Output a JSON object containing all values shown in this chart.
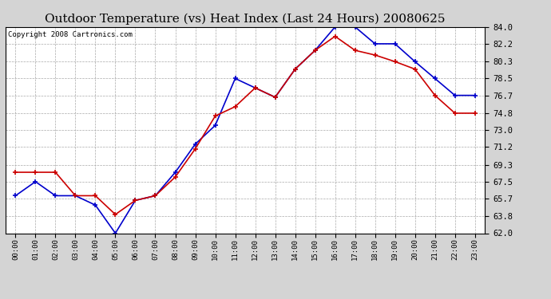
{
  "title": "Outdoor Temperature (vs) Heat Index (Last 24 Hours) 20080625",
  "copyright": "Copyright 2008 Cartronics.com",
  "hours": [
    "00:00",
    "01:00",
    "02:00",
    "03:00",
    "04:00",
    "05:00",
    "06:00",
    "07:00",
    "08:00",
    "09:00",
    "10:00",
    "11:00",
    "12:00",
    "13:00",
    "14:00",
    "15:00",
    "16:00",
    "17:00",
    "18:00",
    "19:00",
    "20:00",
    "21:00",
    "22:00",
    "23:00"
  ],
  "temp": [
    66.0,
    67.5,
    66.0,
    66.0,
    65.0,
    62.0,
    65.5,
    66.0,
    68.5,
    71.5,
    73.5,
    78.5,
    77.5,
    76.5,
    79.5,
    81.5,
    84.0,
    84.0,
    82.2,
    82.2,
    80.3,
    78.5,
    76.7,
    76.7
  ],
  "heat_index": [
    68.5,
    68.5,
    68.5,
    66.0,
    66.0,
    64.0,
    65.5,
    66.0,
    68.0,
    71.0,
    74.5,
    75.5,
    77.5,
    76.5,
    79.5,
    81.5,
    83.0,
    81.5,
    81.0,
    80.3,
    79.5,
    76.7,
    74.8,
    74.8
  ],
  "ylim": [
    62.0,
    84.0
  ],
  "yticks": [
    62.0,
    63.8,
    65.7,
    67.5,
    69.3,
    71.2,
    73.0,
    74.8,
    76.7,
    78.5,
    80.3,
    82.2,
    84.0
  ],
  "temp_color": "#0000cc",
  "heat_index_color": "#cc0000",
  "bg_color": "#d4d4d4",
  "plot_bg_color": "#ffffff",
  "grid_color": "#aaaaaa",
  "title_fontsize": 11,
  "copyright_fontsize": 6.5
}
